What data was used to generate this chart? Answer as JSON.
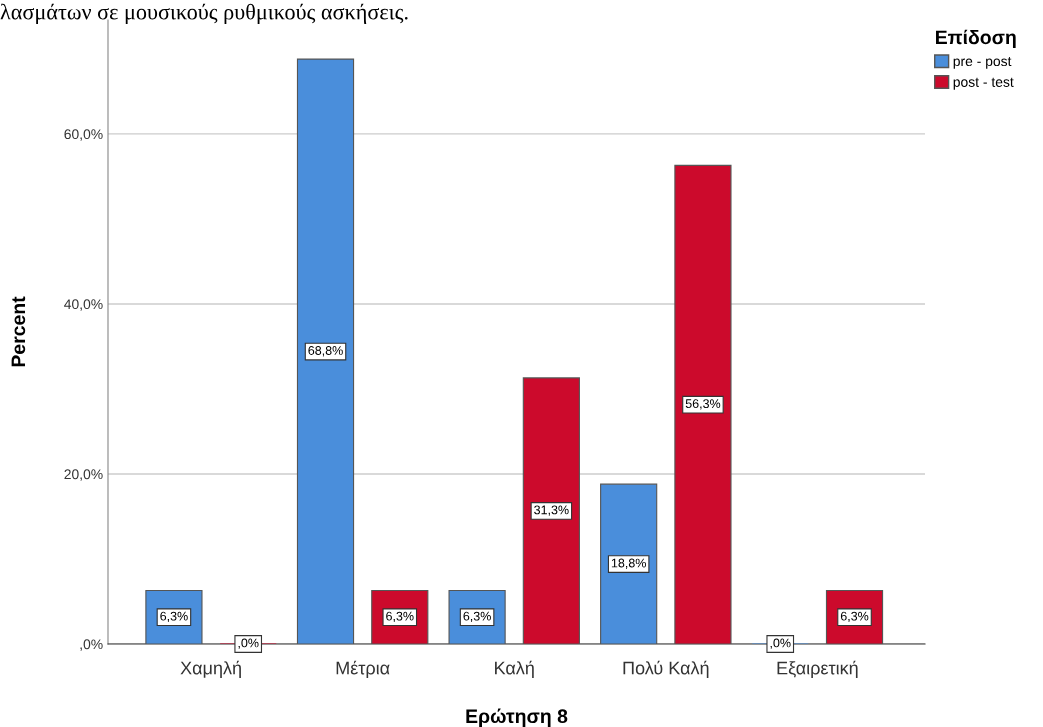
{
  "chart_data": {
    "type": "bar",
    "xlabel": "Ερώτηση 8",
    "ylabel": "Percent",
    "legend_title": "Επίδοση",
    "annotations": [
      "λασμάτων σε μουσικούς ρυθμικούς ασκήσεις."
    ],
    "categories": [
      "Χαμηλή",
      "Μέτρια",
      "Καλή",
      "Πολύ Καλή",
      "Εξαιρετική"
    ],
    "series": [
      {
        "name": "pre - post",
        "color": "#4a8edb",
        "values": [
          6.3,
          68.8,
          6.3,
          18.8,
          0
        ],
        "value_labels": [
          "6,3%",
          "68,8%",
          "6,3%",
          "18,8%",
          ",0%"
        ]
      },
      {
        "name": "post - test",
        "color": "#cc0a2c",
        "values": [
          0,
          6.3,
          31.3,
          56.3,
          6.3
        ],
        "value_labels": [
          ",0%",
          "6,3%",
          "31,3%",
          "56,3%",
          "6,3%"
        ]
      }
    ],
    "ylim": [
      0,
      73.4
    ],
    "yticks": [
      {
        "value": 0,
        "label": ",0%"
      },
      {
        "value": 20,
        "label": "20,0%"
      },
      {
        "value": 40,
        "label": "40,0%"
      },
      {
        "value": 60,
        "label": "60,0%"
      }
    ],
    "grid": "y",
    "legend": "top right"
  }
}
